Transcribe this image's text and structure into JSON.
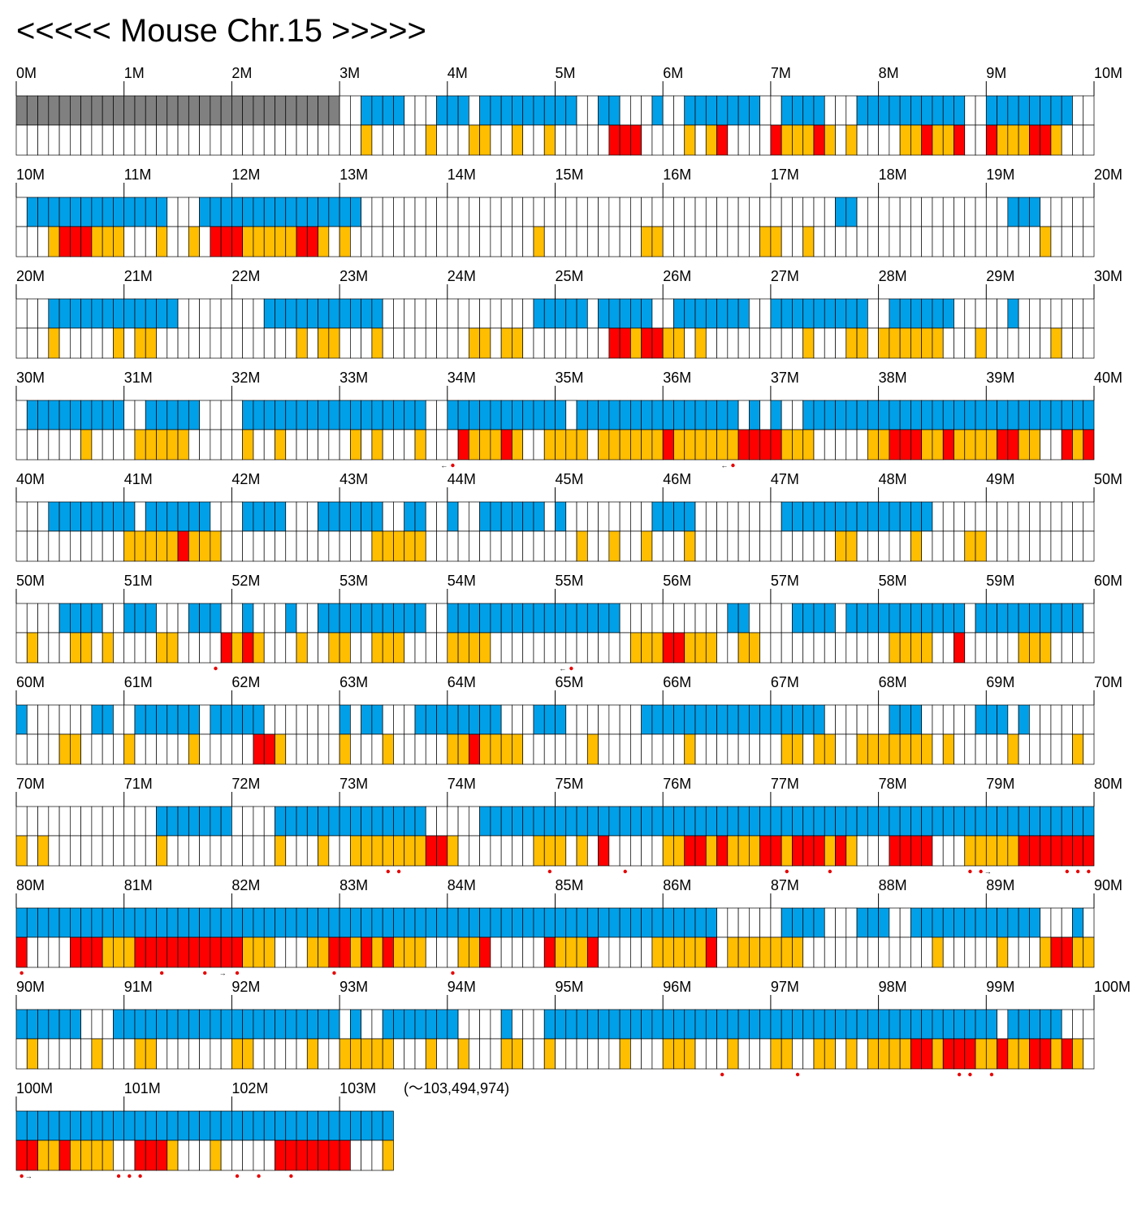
{
  "title": "<<<<< Mouse Chr.15 >>>>>",
  "end_note": "(〜103,494,974)",
  "colors": {
    "gap": "#808080",
    "top": "#00A0E9",
    "yellow": "#FFBE00",
    "red": "#FF0000",
    "empty": "#FFFFFF",
    "grid": "#000000",
    "marker": "#E60000"
  },
  "rows": [
    {
      "labels": [
        "0M",
        "1M",
        "2M",
        "3M",
        "4M",
        "5M",
        "6M",
        "7M",
        "8M",
        "9M",
        "10M"
      ],
      "top": "GGGGGGGGGGGGGGGGGGGGGGGGGGGGGG__BBBB___BBB_BBBBBBBBB__BB___B__BBBBBBB__BBBB___BBBBBBBBBB__BBBBBBBB___",
      "bottom": "________________________________Y_____Y___YY__Y__Y_____RRR____Y_YR____RYYYRY_Y____YYRYYR__RYYYRRY___Y_Y",
      "markers": [],
      "arrows": []
    },
    {
      "labels": [
        "10M",
        "11M",
        "12M",
        "13M",
        "14M",
        "15M",
        "16M",
        "17M",
        "18M",
        "19M",
        "20M"
      ],
      "top": "_BBBBBBBBBBBBB___BBBBBBBBBBBBBBB____________________________________________BB______________BBB_______BBB_B________",
      "bottom": "___YRRRYYY___Y__Y_RRRYYYYYRRY_Y_________________Y_________YY_________YY__Y_____________________Y________Y___YYYYY",
      "markers": [],
      "arrows": []
    },
    {
      "labels": [
        "20M",
        "21M",
        "22M",
        "23M",
        "24M",
        "25M",
        "26M",
        "27M",
        "28M",
        "29M",
        "30M"
      ],
      "top": "___BBBBBBBBBBBB________BBBBBBBBBBB______________BBBBB_BBBBB__BBBBBBB__BBBBBBBBB__BBBBBB_____B___",
      "bottom": "___Y_____Y_YY_____________Y_YY___Y________YY_YY________RRYRRYY_Y_________Y___YY_YYYYYY___Y______Y________YY",
      "markers": [],
      "arrows": []
    },
    {
      "labels": [
        "30M",
        "31M",
        "32M",
        "33M",
        "34M",
        "35M",
        "36M",
        "37M",
        "38M",
        "39M",
        "40M"
      ],
      "top": "_BBBBBBBBB__BBBBB____BBBBBBBBBBBBBBBBB__BBBBBBBBBBB_BBBBBBBBBBBBBBB_B_B__BBBBBBBBBBBBBBBBBBBBBBBBBBBBBBB",
      "bottom": "______Y____YYYYY_____Y__Y______Y_Y___Y___RYYYRY__YYYY_YYYYYYRYYYYYYRRRRYYY_____YYRRRYYRYYYYRRYY__RYR__Y_",
      "markers": [
        40,
        66
      ],
      "arrows": [
        [
          40,
          "L"
        ],
        [
          66,
          "L"
        ]
      ]
    },
    {
      "labels": [
        "40M",
        "41M",
        "42M",
        "43M",
        "44M",
        "45M",
        "46M",
        "47M",
        "48M",
        "49M",
        "50M"
      ],
      "top": "___BBBBBBBB_BBBBBB___BBBB___BBBBBB__BB__B__BBBBBB_B________BBBB________BBBBBBBBBBBBBB________",
      "bottom": "__________YYYYYRYYY______________YYYYY______________Y__Y__Y___Y_____________YY_____Y____YY___________________Y____Y___Y_____",
      "markers": [],
      "arrows": []
    },
    {
      "labels": [
        "50M",
        "51M",
        "52M",
        "53M",
        "54M",
        "55M",
        "56M",
        "57M",
        "58M",
        "59M",
        "60M"
      ],
      "top": "____BBBB__BBB___BBB__B___B__BBBBBBBBBB__BBBBBBBBBBBBBBBB__________BB____BBBB_BBBBBBBBBBB_BBBBBBBBBB_B_BB",
      "bottom": "_Y___YY_Y____YY____RYRY___Y__YY__YYY____YYYY_____________YYYRRYYY__YY____________YYYY__R_____YYY_____Y_____YYYRRRRRRYR_YY____",
      "markers": [
        18,
        51
      ],
      "arrows": [
        [
          51,
          "L"
        ]
      ]
    },
    {
      "labels": [
        "60M",
        "61M",
        "62M",
        "63M",
        "64M",
        "65M",
        "66M",
        "67M",
        "68M",
        "69M",
        "70M"
      ],
      "top": "B______BB__BBBBBB_BBBBB_______B_BB___BBBBBBBB___BBB_______BBBBBBBBBBBBBBBBB______BBB_____BBB_B______BBB",
      "bottom": "____YY____Y_____Y_____RRY_____Y___Y_____YYRYYYY______Y________Y________YY_YY__YYYYYYY_Y_____Y_____Y__YYYY___Y___Y_______YY______Y",
      "markers": [],
      "arrows": []
    },
    {
      "labels": [
        "70M",
        "71M",
        "72M",
        "73M",
        "74M",
        "75M",
        "76M",
        "77M",
        "78M",
        "79M",
        "80M"
      ],
      "top": "_____________BBBBBBB____BBBBBBBBBBBBBB_____BBBBBBBBBBBBBBBBBBBBBBBBBBBBBBBBBBBBBBBBBBBBBBBBBBBBBBBBB",
      "bottom": "Y_Y__________Y__________Y___Y__YYYYYYYRRY_______YYY_Y_R_____YYRRYRYYYRRYRRRYRY___RRRR___YYYYYRRRRRRRRYRRRR",
      "markers": [
        34,
        35,
        49,
        56,
        71,
        75,
        88,
        89,
        97,
        98,
        99
      ],
      "arrows": [
        [
          89,
          "R"
        ]
      ]
    },
    {
      "labels": [
        "80M",
        "81M",
        "82M",
        "83M",
        "84M",
        "85M",
        "86M",
        "87M",
        "88M",
        "89M",
        "90M"
      ],
      "top": "BBBBBBBBBBBBBBBBBBBBBBBBBBBBBBBBBBBBBBBBBBBBBBBBBBBBBBBBBBBBBBBBB______BBBB___BBB__BBBBBBBBBBBB___B___",
      "bottom": "R____RRRYYYRRRRRRRRRRYYY___YYRRYRYRYYY___YYR_____RYYYR_____YYYYYR_YYYYYYY____________Y_____Y___YRRYYYYYYYYY____YYY",
      "markers": [
        0,
        13,
        17,
        20,
        29,
        40
      ],
      "arrows": [
        [
          18,
          "R"
        ]
      ]
    },
    {
      "labels": [
        "90M",
        "91M",
        "92M",
        "93M",
        "94M",
        "95M",
        "96M",
        "97M",
        "98M",
        "99M",
        "100M"
      ],
      "top": "BBBBBB___BBBBBBBBBBBBBBBBBBBBB_B__BBBBBBB____B___BBBBBBBBBBBBBBBBBBBBBBBBBBBBBBBBBBBBBBBBBB_BBBBB___BBBBBBBBBBBBBBBBBBBBBBBBBB",
      "bottom": "_Y_____Y___YY_______YY_____Y__YYYYY___Y__Y___YY__Y______Y___YYY___Y___YY__YY_Y_YYYYRRYRRRYYRYYRRYRY__YY_RYYY_RRYYRRRRRYYRYRRRRR",
      "markers": [
        65,
        72,
        87,
        88,
        90
      ],
      "arrows": []
    },
    {
      "labels": [
        "100M",
        "101M",
        "102M",
        "103M"
      ],
      "top": "BBBBBBBBBBBBBBBBBBBBBBBBBBBBBBBBBBB",
      "bottom": "RRYYRYYYY__RRRY___Y_____RRRRRRR___YRRYY",
      "markers": [
        0,
        9,
        10,
        11,
        20,
        22,
        25
      ],
      "arrows": [
        [
          0,
          "R"
        ]
      ]
    }
  ]
}
